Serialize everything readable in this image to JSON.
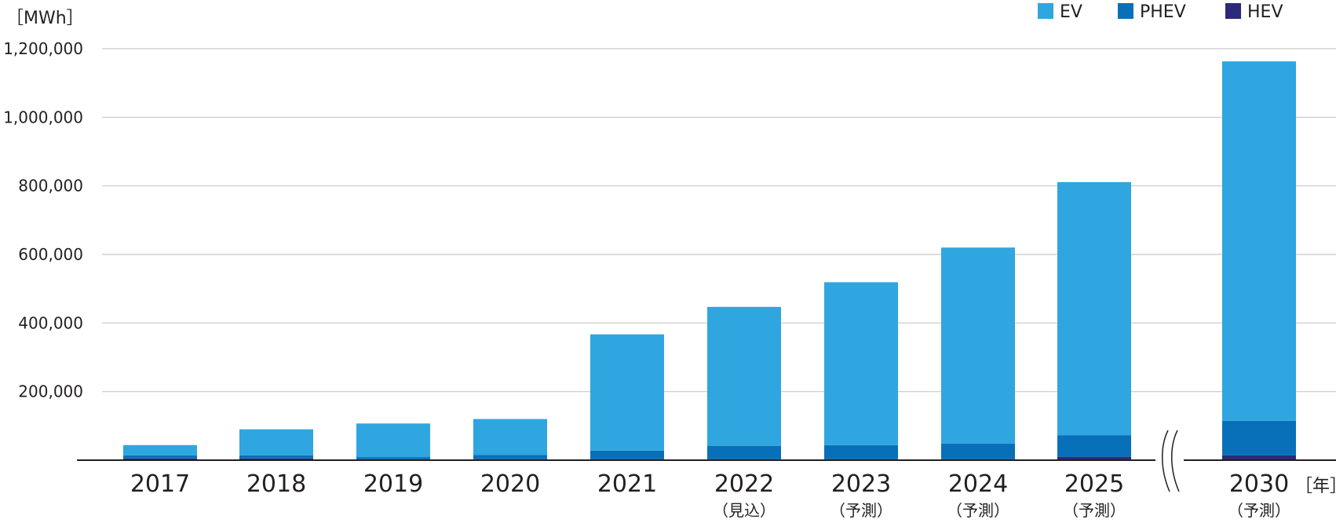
{
  "chart_data": {
    "type": "bar",
    "stacked": true,
    "y_unit": "［MWh］",
    "x_unit": "［年］",
    "categories": [
      "2017",
      "2018",
      "2019",
      "2020",
      "2021",
      "2022",
      "2023",
      "2024",
      "2025",
      "2030"
    ],
    "category_notes": [
      "",
      "",
      "",
      "",
      "",
      "（見込）",
      "（予測）",
      "（予測）",
      "（予測）",
      "（予測）"
    ],
    "series": [
      {
        "name": "HEV",
        "color": "#2b2a7a",
        "values": [
          5000,
          5000,
          3000,
          3000,
          3000,
          3000,
          3000,
          3000,
          10000,
          14000
        ]
      },
      {
        "name": "PHEV",
        "color": "#0870b8",
        "values": [
          9000,
          9000,
          6000,
          12000,
          25000,
          39000,
          41000,
          45000,
          63000,
          101000
        ]
      },
      {
        "name": "EV",
        "color": "#2fa6e0",
        "values": [
          30000,
          76000,
          98000,
          105000,
          339000,
          405000,
          475000,
          572000,
          738000,
          1048000
        ]
      }
    ],
    "legend_order": [
      "EV",
      "PHEV",
      "HEV"
    ],
    "legend_position": "top-right",
    "yticks": [
      "200,000",
      "400,000",
      "600,000",
      "800,000",
      "1,000,000",
      "1,200,000"
    ],
    "ytick_values": [
      200000,
      400000,
      600000,
      800000,
      1000000,
      1200000
    ],
    "ylim": [
      0,
      1200000
    ],
    "grid": true,
    "axis_break_before": "2030"
  }
}
